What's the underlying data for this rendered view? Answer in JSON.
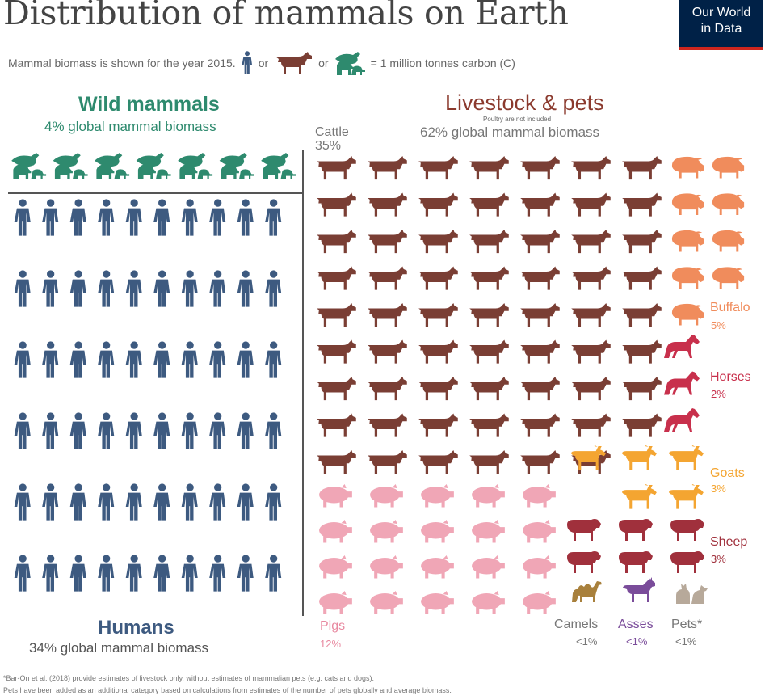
{
  "header": {
    "title": "Distribution of mammals on Earth",
    "subtitle_before": "Mammal biomass is shown for the year 2015.",
    "or_1": "or",
    "or_2": "or",
    "subtitle_after": "= 1 million tonnes carbon (C)",
    "logo_line1": "Our World",
    "logo_line2": "in Data"
  },
  "wild": {
    "heading": "Wild mammals",
    "share": "4% global mammal biomass"
  },
  "livestock": {
    "heading": "Livestock & pets",
    "note": "Poultry are not included",
    "share": "62% global mammal biomass"
  },
  "humans": {
    "heading": "Humans",
    "share": "34% global mammal biomass"
  },
  "chart_data": {
    "type": "pictogram",
    "title": "Distribution of mammals on Earth",
    "unit": "1 million tonnes carbon (C)",
    "year": 2015,
    "categories": [
      {
        "name": "Wild mammals",
        "icons": 7,
        "share": "4%",
        "color": "#2e8a6e"
      },
      {
        "name": "Humans",
        "icons": 60,
        "share": "34%",
        "color": "#3d5a80"
      },
      {
        "name": "Cattle",
        "icons": 62,
        "share": "35%",
        "color": "#7a3e34"
      },
      {
        "name": "Pigs",
        "icons": 20,
        "share": "12%",
        "color": "#f0a6b6"
      },
      {
        "name": "Buffalo",
        "icons": 9,
        "share": "5%",
        "color": "#f08c5c"
      },
      {
        "name": "Horses",
        "icons": 3,
        "share": "2%",
        "color": "#c8304c"
      },
      {
        "name": "Goats",
        "icons": 5,
        "share": "3%",
        "color": "#f4a531"
      },
      {
        "name": "Sheep",
        "icons": 6,
        "share": "3%",
        "color": "#a0303c"
      },
      {
        "name": "Camels",
        "icons": 1,
        "share": "<1%",
        "color": "#a8803c"
      },
      {
        "name": "Asses",
        "icons": 1,
        "share": "<1%",
        "color": "#7a4c9a"
      },
      {
        "name": "Pets*",
        "icons": 1,
        "share": "<1%",
        "color": "#b7a99a"
      }
    ],
    "labels": {
      "cattle": "Cattle",
      "cattle_pct": "35%",
      "pigs": "Pigs",
      "pigs_pct": "12%",
      "buffalo": "Buffalo",
      "buffalo_pct": "5%",
      "horses": "Horses",
      "horses_pct": "2%",
      "goats": "Goats",
      "goats_pct": "3%",
      "sheep": "Sheep",
      "sheep_pct": "3%",
      "camels": "Camels",
      "camels_pct": "<1%",
      "asses": "Asses",
      "asses_pct": "<1%",
      "pets": "Pets*",
      "pets_pct": "<1%"
    }
  },
  "footnotes": {
    "line1": "*Bar-On et al. (2018) provide estimates of livestock only, without estimates of mammalian pets (e.g. cats and dogs).",
    "line2": "Pets have been added as an additional category based on calculations from estimates of the number of pets globally and average biomass."
  },
  "icons": {
    "human": "human-icon",
    "cow": "cow-icon",
    "wild": "whale-elephant-icon",
    "pig": "pig-icon",
    "buffalo": "buffalo-icon",
    "horse": "horse-icon",
    "goat": "goat-icon",
    "sheep": "sheep-icon",
    "camel": "camel-icon",
    "ass": "donkey-icon",
    "pet": "cat-dog-icon"
  }
}
